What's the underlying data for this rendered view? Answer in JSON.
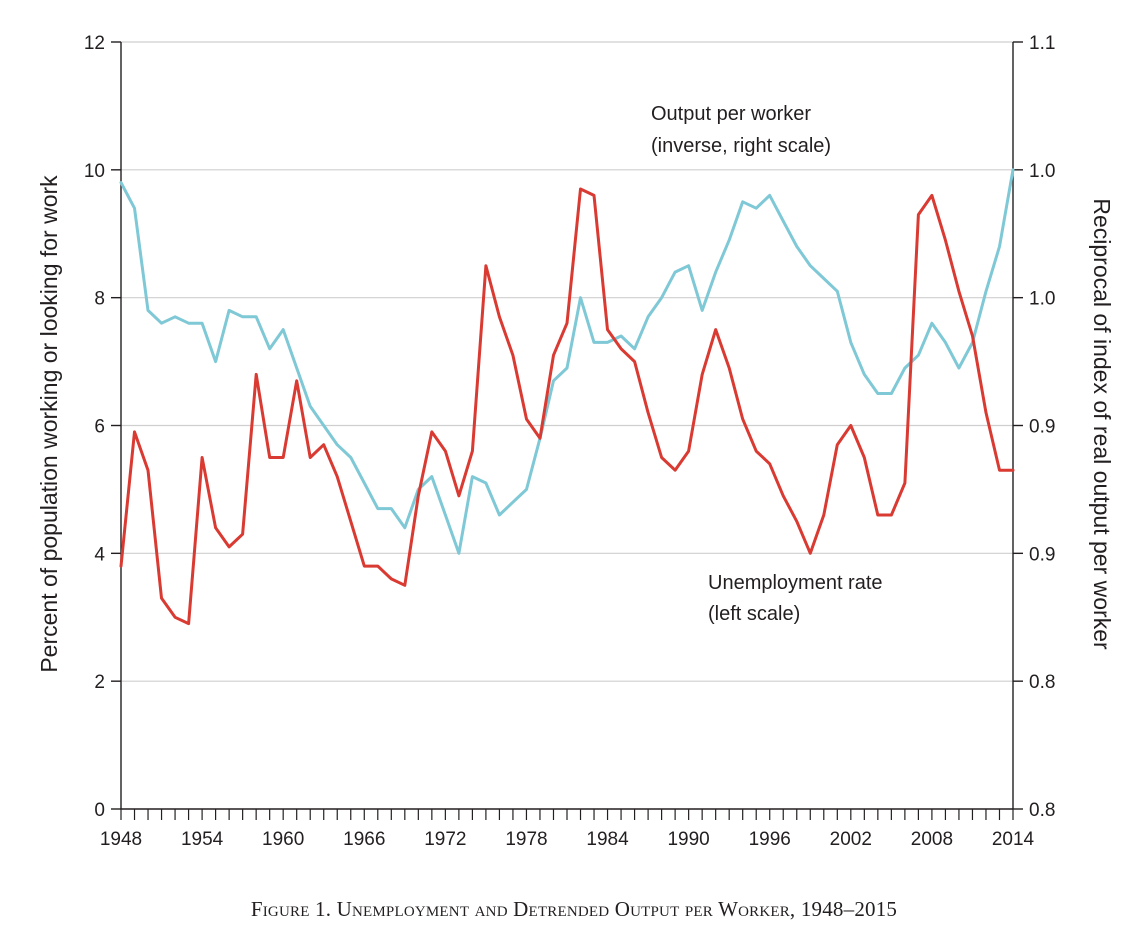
{
  "chart_data": {
    "type": "line",
    "title": "Figure 1. Unemployment and Detrended Output per Worker, 1948–2015",
    "ylabel_left": "Percent of population working or looking for work",
    "ylabel_right": "Reciprocal of index of real output per worker",
    "xlim": [
      1948,
      2014
    ],
    "ylim_left": [
      0,
      12
    ],
    "x_tick_labels": [
      "1948",
      "1954",
      "1960",
      "1966",
      "1972",
      "1978",
      "1984",
      "1990",
      "1996",
      "2002",
      "2008",
      "2014"
    ],
    "x_tick_values": [
      1948,
      1954,
      1960,
      1966,
      1972,
      1978,
      1984,
      1990,
      1996,
      2002,
      2008,
      2014
    ],
    "y_left_ticks": [
      0,
      2,
      4,
      6,
      8,
      10,
      12
    ],
    "y_left_tick_labels": [
      "0",
      "2",
      "4",
      "6",
      "8",
      "10",
      "12"
    ],
    "y_right_tick_labels": [
      "0.8",
      "0.8",
      "0.9",
      "0.9",
      "1.0",
      "1.0",
      "1.1"
    ],
    "grid": true,
    "series": [
      {
        "name": "Unemployment rate",
        "axis": "left",
        "color": "#d93a32",
        "x": [
          1948,
          1949,
          1950,
          1951,
          1952,
          1953,
          1954,
          1955,
          1956,
          1957,
          1958,
          1959,
          1960,
          1961,
          1962,
          1963,
          1964,
          1965,
          1966,
          1967,
          1968,
          1969,
          1970,
          1971,
          1972,
          1973,
          1974,
          1975,
          1976,
          1977,
          1978,
          1979,
          1980,
          1981,
          1982,
          1983,
          1984,
          1985,
          1986,
          1987,
          1988,
          1989,
          1990,
          1991,
          1992,
          1993,
          1994,
          1995,
          1996,
          1997,
          1998,
          1999,
          2000,
          2001,
          2002,
          2003,
          2004,
          2005,
          2006,
          2007,
          2008,
          2009,
          2010,
          2011,
          2012,
          2013,
          2014
        ],
        "values": [
          3.8,
          5.9,
          5.3,
          3.3,
          3.0,
          2.9,
          5.5,
          4.4,
          4.1,
          4.3,
          6.8,
          5.5,
          5.5,
          6.7,
          5.5,
          5.7,
          5.2,
          4.5,
          3.8,
          3.8,
          3.6,
          3.5,
          4.9,
          5.9,
          5.6,
          4.9,
          5.6,
          8.5,
          7.7,
          7.1,
          6.1,
          5.8,
          7.1,
          7.6,
          9.7,
          9.6,
          7.5,
          7.2,
          7.0,
          6.2,
          5.5,
          5.3,
          5.6,
          6.8,
          7.5,
          6.9,
          6.1,
          5.6,
          5.4,
          4.9,
          4.5,
          4.0,
          4.6,
          5.7,
          6.0,
          5.5,
          4.6,
          4.6,
          5.1,
          9.3,
          9.6,
          8.9,
          8.1,
          7.4,
          6.2,
          5.3,
          5.3
        ]
      },
      {
        "name": "Output per worker",
        "axis": "right",
        "color": "#7fc8d6",
        "x": [
          1948,
          1949,
          1950,
          1951,
          1952,
          1953,
          1954,
          1955,
          1956,
          1957,
          1958,
          1959,
          1960,
          1961,
          1962,
          1963,
          1964,
          1965,
          1966,
          1967,
          1968,
          1969,
          1970,
          1971,
          1972,
          1973,
          1974,
          1975,
          1976,
          1977,
          1978,
          1979,
          1980,
          1981,
          1982,
          1983,
          1984,
          1985,
          1986,
          1987,
          1988,
          1989,
          1990,
          1991,
          1992,
          1993,
          1994,
          1995,
          1996,
          1997,
          1998,
          1999,
          2000,
          2001,
          2002,
          2003,
          2004,
          2005,
          2006,
          2007,
          2008,
          2009,
          2010,
          2011,
          2012,
          2013,
          2014
        ],
        "values_left_scale": [
          9.8,
          9.4,
          7.8,
          7.6,
          7.7,
          7.6,
          7.6,
          7.0,
          7.8,
          7.7,
          7.7,
          7.2,
          7.5,
          6.9,
          6.3,
          6.0,
          5.7,
          5.5,
          5.1,
          4.7,
          4.7,
          4.4,
          5.0,
          5.2,
          4.6,
          4.0,
          5.2,
          5.1,
          4.6,
          4.8,
          5.0,
          5.8,
          6.7,
          6.9,
          8.0,
          7.3,
          7.3,
          7.4,
          7.2,
          7.7,
          8.0,
          8.4,
          8.5,
          7.8,
          8.4,
          8.9,
          9.5,
          9.4,
          9.6,
          9.2,
          8.8,
          8.5,
          8.3,
          8.1,
          7.3,
          6.8,
          6.5,
          6.5,
          6.9,
          7.1,
          7.6,
          7.3,
          6.9,
          7.3,
          8.1,
          8.8,
          10.0
        ]
      }
    ],
    "annotations": [
      {
        "text": "Output per worker",
        "series": "Output per worker"
      },
      {
        "text": "(inverse, right scale)",
        "series": "Output per worker"
      },
      {
        "text": "Unemployment rate",
        "series": "Unemployment rate"
      },
      {
        "text": "(left scale)",
        "series": "Unemployment rate"
      }
    ]
  }
}
